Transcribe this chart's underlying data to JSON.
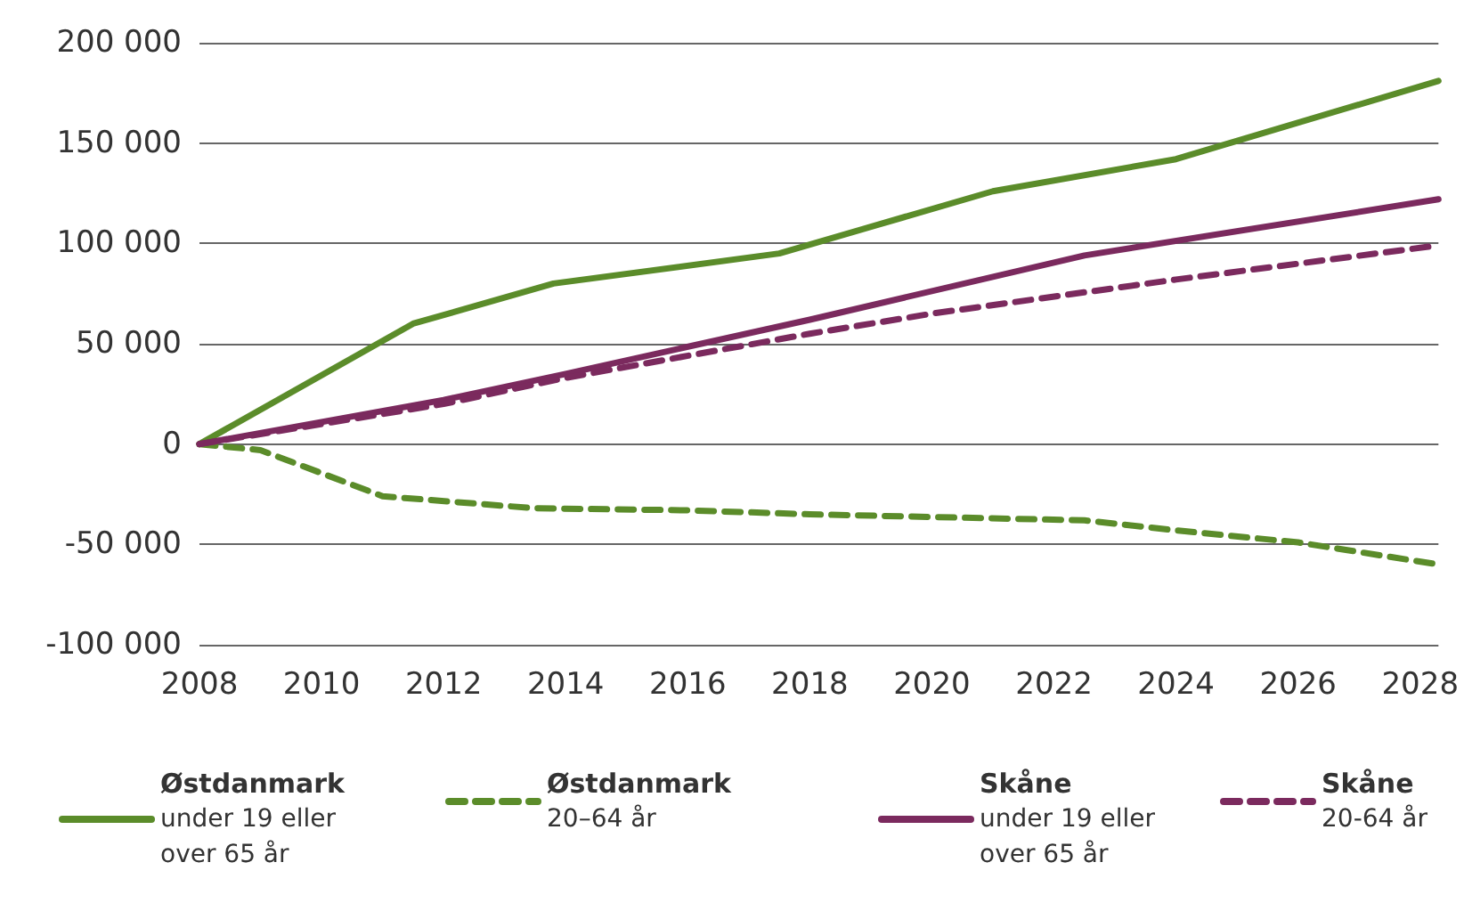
{
  "chart_data": {
    "type": "line",
    "xlim": [
      2008,
      2028.3
    ],
    "xticks": [
      2008,
      2010,
      2012,
      2014,
      2016,
      2018,
      2020,
      2022,
      2024,
      2026,
      2028
    ],
    "ylim": [
      -100000,
      200000
    ],
    "yticks": [
      {
        "value": -100000,
        "label": "-100 000"
      },
      {
        "value": -50000,
        "label": "-50 000"
      },
      {
        "value": 0,
        "label": "0"
      },
      {
        "value": 50000,
        "label": "50 000"
      },
      {
        "value": 100000,
        "label": "100 000"
      },
      {
        "value": 150000,
        "label": "150 000"
      },
      {
        "value": 200000,
        "label": "200 000"
      }
    ],
    "grid": "y",
    "legend": "bottom",
    "marker": "none",
    "series": [
      {
        "name": "Østdanmark\nunder 19 eller\nover 65 år",
        "color": "#5b8c2a",
        "line_style": "solid",
        "x": [
          2008,
          2011.5,
          2013.8,
          2017.5,
          2021,
          2024,
          2028.3
        ],
        "values": [
          0,
          60000,
          80000,
          95000,
          126000,
          142000,
          181000
        ]
      },
      {
        "name": "Østdanmark\n20–64 år",
        "color": "#5b8c2a",
        "line_style": "dashed",
        "x": [
          2008,
          2009,
          2011,
          2013.5,
          2016,
          2018,
          2022.5,
          2024,
          2026,
          2028.3
        ],
        "values": [
          0,
          -3000,
          -26000,
          -32000,
          -33000,
          -35000,
          -38000,
          -43000,
          -49000,
          -60000
        ]
      },
      {
        "name": "Skåne\nunder 19 eller\nover 65 år",
        "color": "#7b2a5e",
        "line_style": "solid",
        "x": [
          2008,
          2012,
          2014,
          2018,
          2022.5,
          2028.3
        ],
        "values": [
          0,
          22000,
          35000,
          62000,
          94000,
          122000
        ]
      },
      {
        "name": "Skåne\n20-64 år",
        "color": "#7b2a5e",
        "line_style": "dashed",
        "x": [
          2008,
          2012,
          2014,
          2018,
          2020,
          2024,
          2028.3
        ],
        "values": [
          0,
          20000,
          33000,
          55000,
          65000,
          82000,
          99000
        ]
      }
    ]
  }
}
